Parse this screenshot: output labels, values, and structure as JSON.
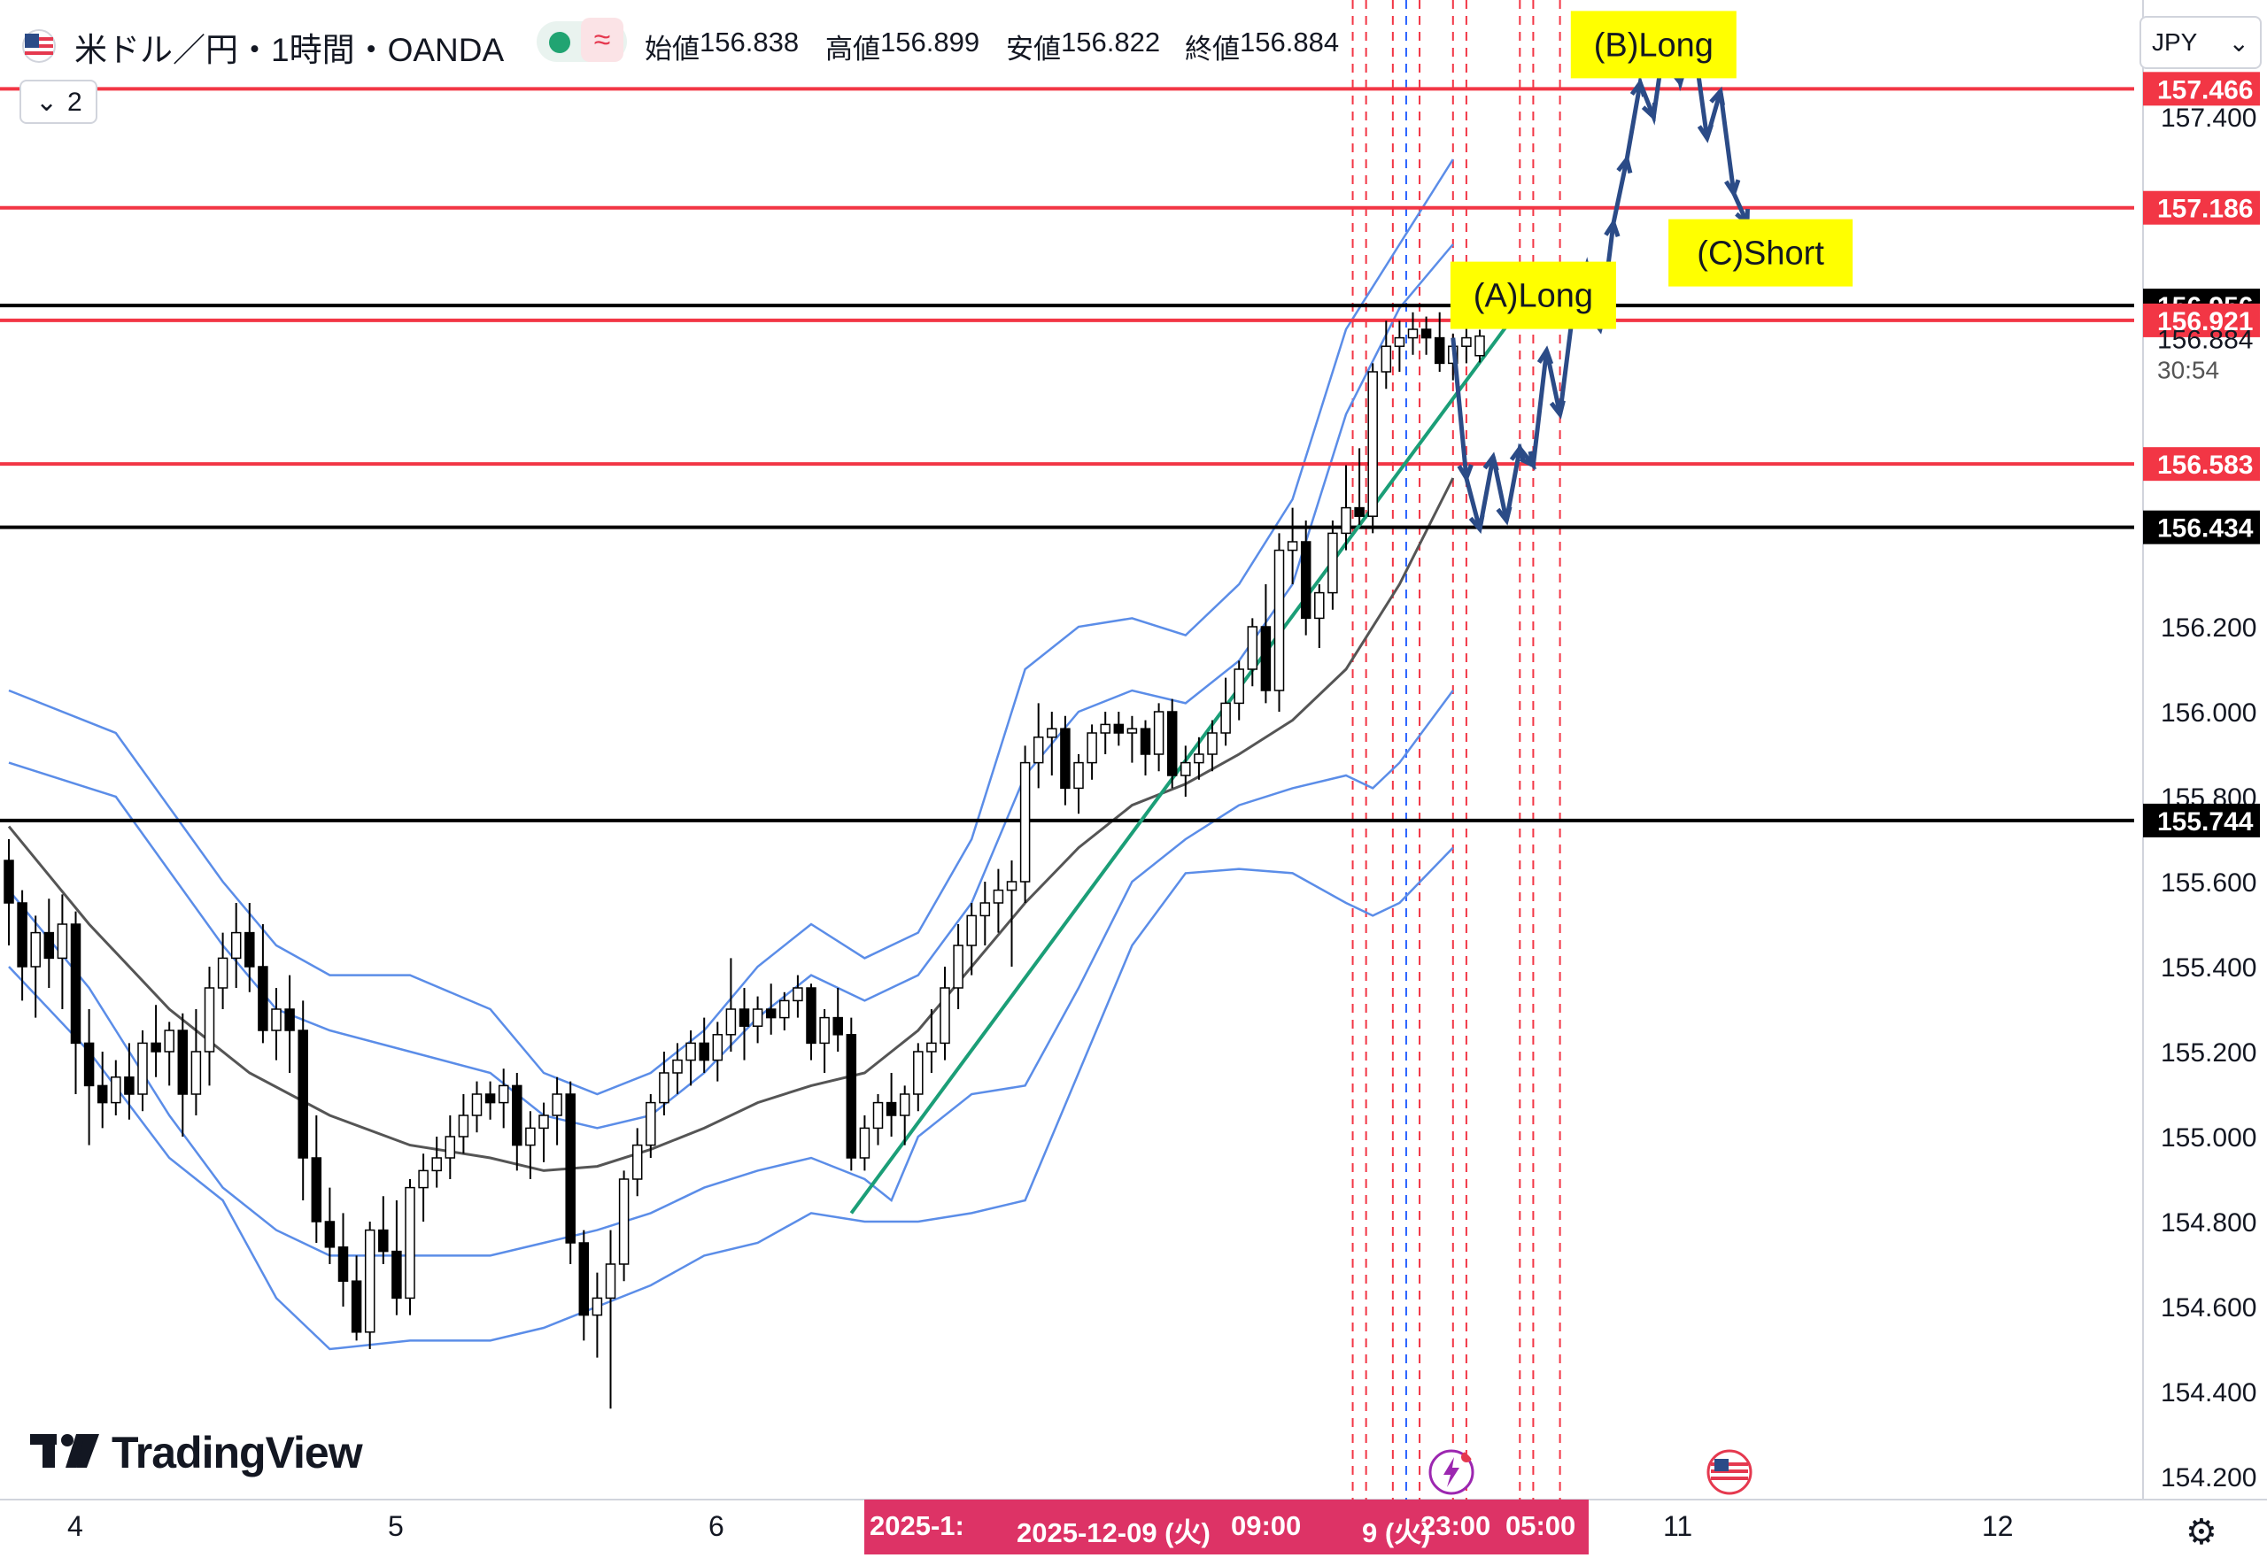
{
  "header": {
    "symbol_title": "米ドル／円・1時間・OANDA",
    "open_label": "始値",
    "open": "156.838",
    "high_label": "高値",
    "high": "156.899",
    "low_label": "安値",
    "low": "156.822",
    "close_label": "終値",
    "close": "156.884",
    "wave_glyph": "≈",
    "indicator_count": "2",
    "currency": "JPY"
  },
  "watermark": "TradingView",
  "colors": {
    "up_candle": "#ffffff",
    "down_candle": "#000000",
    "bollinger": "#5b8de8",
    "middle_band": "#555555",
    "red_level": "#f23645",
    "black_level": "#000000",
    "trendline": "#1b9e77",
    "forecast_path": "#2b4b87",
    "annotation_bg": "#ffff00",
    "date_highlight": "#dd3366"
  },
  "chart_data": {
    "type": "candlestick",
    "symbol": "USDJPY",
    "timeframe": "1 hour",
    "ylim": [
      154.1,
      157.65
    ],
    "y_ticks": [
      "157.400",
      "156.200",
      "156.000",
      "155.800",
      "155.600",
      "155.400",
      "155.200",
      "155.000",
      "154.800",
      "154.600",
      "154.400",
      "154.200"
    ],
    "x_ticks": [
      {
        "label": "4",
        "index": 0
      },
      {
        "label": "5",
        "index": 24
      },
      {
        "label": "6",
        "index": 48
      },
      {
        "label": "11",
        "index": 120
      },
      {
        "label": "12",
        "index": 144
      }
    ],
    "candles": [
      [
        155.65,
        155.7,
        155.45,
        155.55
      ],
      [
        155.55,
        155.58,
        155.32,
        155.4
      ],
      [
        155.4,
        155.52,
        155.28,
        155.48
      ],
      [
        155.48,
        155.56,
        155.35,
        155.42
      ],
      [
        155.42,
        155.57,
        155.3,
        155.5
      ],
      [
        155.5,
        155.53,
        155.1,
        155.22
      ],
      [
        155.22,
        155.3,
        154.98,
        155.12
      ],
      [
        155.12,
        155.2,
        155.02,
        155.08
      ],
      [
        155.08,
        155.18,
        155.05,
        155.14
      ],
      [
        155.14,
        155.22,
        155.04,
        155.1
      ],
      [
        155.1,
        155.25,
        155.06,
        155.22
      ],
      [
        155.22,
        155.31,
        155.14,
        155.2
      ],
      [
        155.2,
        155.27,
        155.12,
        155.25
      ],
      [
        155.25,
        155.29,
        155.0,
        155.1
      ],
      [
        155.1,
        155.3,
        155.05,
        155.2
      ],
      [
        155.2,
        155.4,
        155.12,
        155.35
      ],
      [
        155.35,
        155.48,
        155.3,
        155.42
      ],
      [
        155.42,
        155.55,
        155.35,
        155.48
      ],
      [
        155.48,
        155.55,
        155.34,
        155.4
      ],
      [
        155.4,
        155.5,
        155.22,
        155.25
      ],
      [
        155.25,
        155.35,
        155.18,
        155.3
      ],
      [
        155.3,
        155.38,
        155.15,
        155.25
      ],
      [
        155.25,
        155.32,
        154.85,
        154.95
      ],
      [
        154.95,
        155.05,
        154.75,
        154.8
      ],
      [
        154.8,
        154.88,
        154.7,
        154.74
      ],
      [
        154.74,
        154.82,
        154.6,
        154.66
      ],
      [
        154.66,
        154.72,
        154.52,
        154.54
      ],
      [
        154.54,
        154.8,
        154.5,
        154.78
      ],
      [
        154.78,
        154.86,
        154.7,
        154.73
      ],
      [
        154.73,
        154.85,
        154.58,
        154.62
      ],
      [
        154.62,
        154.9,
        154.58,
        154.88
      ],
      [
        154.88,
        154.96,
        154.8,
        154.92
      ],
      [
        154.92,
        155.0,
        154.88,
        154.95
      ],
      [
        154.95,
        155.05,
        154.9,
        155.0
      ],
      [
        155.0,
        155.1,
        154.96,
        155.05
      ],
      [
        155.05,
        155.13,
        155.01,
        155.1
      ],
      [
        155.1,
        155.13,
        155.04,
        155.08
      ],
      [
        155.08,
        155.16,
        155.02,
        155.12
      ],
      [
        155.12,
        155.15,
        154.92,
        154.98
      ],
      [
        154.98,
        155.06,
        154.9,
        155.02
      ],
      [
        155.02,
        155.08,
        154.94,
        155.05
      ],
      [
        155.05,
        155.14,
        154.98,
        155.1
      ],
      [
        155.1,
        155.13,
        154.7,
        154.75
      ],
      [
        154.75,
        154.78,
        154.52,
        154.58
      ],
      [
        154.58,
        154.68,
        154.48,
        154.62
      ],
      [
        154.62,
        154.78,
        154.36,
        154.7
      ],
      [
        154.7,
        154.92,
        154.66,
        154.9
      ],
      [
        154.9,
        155.02,
        154.86,
        154.98
      ],
      [
        154.98,
        155.1,
        154.95,
        155.08
      ],
      [
        155.08,
        155.2,
        155.05,
        155.15
      ],
      [
        155.15,
        155.22,
        155.1,
        155.18
      ],
      [
        155.18,
        155.25,
        155.12,
        155.22
      ],
      [
        155.22,
        155.28,
        155.15,
        155.18
      ],
      [
        155.18,
        155.27,
        155.13,
        155.24
      ],
      [
        155.24,
        155.42,
        155.2,
        155.3
      ],
      [
        155.3,
        155.35,
        155.18,
        155.26
      ],
      [
        155.26,
        155.33,
        155.22,
        155.3
      ],
      [
        155.3,
        155.36,
        155.24,
        155.28
      ],
      [
        155.28,
        155.34,
        155.25,
        155.32
      ],
      [
        155.32,
        155.38,
        155.28,
        155.35
      ],
      [
        155.35,
        155.36,
        155.18,
        155.22
      ],
      [
        155.22,
        155.3,
        155.15,
        155.28
      ],
      [
        155.28,
        155.35,
        155.2,
        155.24
      ],
      [
        155.24,
        155.28,
        154.92,
        154.95
      ],
      [
        154.95,
        155.05,
        154.92,
        155.02
      ],
      [
        155.02,
        155.1,
        154.98,
        155.08
      ],
      [
        155.08,
        155.15,
        155.0,
        155.05
      ],
      [
        155.05,
        155.12,
        154.98,
        155.1
      ],
      [
        155.1,
        155.22,
        155.06,
        155.2
      ],
      [
        155.2,
        155.3,
        155.15,
        155.22
      ],
      [
        155.22,
        155.4,
        155.18,
        155.35
      ],
      [
        155.35,
        155.5,
        155.3,
        155.45
      ],
      [
        155.45,
        155.55,
        155.38,
        155.52
      ],
      [
        155.52,
        155.6,
        155.45,
        155.55
      ],
      [
        155.55,
        155.63,
        155.48,
        155.58
      ],
      [
        155.58,
        155.65,
        155.4,
        155.6
      ],
      [
        155.6,
        155.92,
        155.55,
        155.88
      ],
      [
        155.88,
        156.02,
        155.82,
        155.94
      ],
      [
        155.94,
        156.0,
        155.85,
        155.96
      ],
      [
        155.96,
        155.99,
        155.78,
        155.82
      ],
      [
        155.82,
        155.9,
        155.76,
        155.88
      ],
      [
        155.88,
        155.97,
        155.84,
        155.95
      ],
      [
        155.95,
        156.0,
        155.9,
        155.97
      ],
      [
        155.97,
        156.0,
        155.92,
        155.95
      ],
      [
        155.95,
        155.99,
        155.88,
        155.96
      ],
      [
        155.96,
        155.98,
        155.85,
        155.9
      ],
      [
        155.9,
        156.02,
        155.86,
        156.0
      ],
      [
        156.0,
        156.03,
        155.82,
        155.85
      ],
      [
        155.85,
        155.92,
        155.8,
        155.88
      ],
      [
        155.88,
        155.94,
        155.84,
        155.9
      ],
      [
        155.9,
        155.98,
        155.86,
        155.95
      ],
      [
        155.95,
        156.08,
        155.92,
        156.02
      ],
      [
        156.02,
        156.12,
        155.98,
        156.1
      ],
      [
        156.1,
        156.22,
        156.06,
        156.2
      ],
      [
        156.2,
        156.3,
        156.02,
        156.05
      ],
      [
        156.05,
        156.42,
        156.0,
        156.38
      ],
      [
        156.38,
        156.48,
        156.3,
        156.4
      ],
      [
        156.4,
        156.45,
        156.18,
        156.22
      ],
      [
        156.22,
        156.3,
        156.15,
        156.28
      ],
      [
        156.28,
        156.45,
        156.24,
        156.42
      ],
      [
        156.42,
        156.58,
        156.38,
        156.48
      ],
      [
        156.48,
        156.62,
        156.44,
        156.46
      ],
      [
        156.46,
        156.82,
        156.42,
        156.8
      ],
      [
        156.8,
        156.92,
        156.76,
        156.86
      ],
      [
        156.86,
        156.92,
        156.8,
        156.88
      ],
      [
        156.88,
        156.94,
        156.84,
        156.9
      ],
      [
        156.9,
        156.93,
        156.84,
        156.88
      ],
      [
        156.88,
        156.94,
        156.8,
        156.82
      ],
      [
        156.82,
        156.89,
        156.78,
        156.86
      ],
      [
        156.86,
        156.91,
        156.82,
        156.88
      ],
      [
        156.838,
        156.899,
        156.822,
        156.884
      ]
    ],
    "bollinger": {
      "upper_outer": [
        [
          0,
          156.05
        ],
        [
          8,
          155.95
        ],
        [
          16,
          155.6
        ],
        [
          20,
          155.45
        ],
        [
          24,
          155.38
        ],
        [
          30,
          155.38
        ],
        [
          36,
          155.3
        ],
        [
          40,
          155.15
        ],
        [
          44,
          155.1
        ],
        [
          48,
          155.15
        ],
        [
          52,
          155.25
        ],
        [
          56,
          155.4
        ],
        [
          60,
          155.5
        ],
        [
          64,
          155.42
        ],
        [
          68,
          155.48
        ],
        [
          72,
          155.7
        ],
        [
          76,
          156.1
        ],
        [
          80,
          156.2
        ],
        [
          84,
          156.22
        ],
        [
          88,
          156.18
        ],
        [
          92,
          156.3
        ],
        [
          96,
          156.5
        ],
        [
          100,
          156.9
        ],
        [
          104,
          157.1
        ],
        [
          108,
          157.3
        ]
      ],
      "upper_inner": [
        [
          0,
          155.88
        ],
        [
          8,
          155.8
        ],
        [
          16,
          155.45
        ],
        [
          20,
          155.3
        ],
        [
          24,
          155.25
        ],
        [
          30,
          155.2
        ],
        [
          36,
          155.15
        ],
        [
          40,
          155.05
        ],
        [
          44,
          155.02
        ],
        [
          48,
          155.05
        ],
        [
          52,
          155.15
        ],
        [
          56,
          155.28
        ],
        [
          60,
          155.38
        ],
        [
          64,
          155.32
        ],
        [
          68,
          155.38
        ],
        [
          72,
          155.55
        ],
        [
          76,
          155.85
        ],
        [
          80,
          156.0
        ],
        [
          84,
          156.05
        ],
        [
          88,
          156.02
        ],
        [
          92,
          156.12
        ],
        [
          96,
          156.3
        ],
        [
          100,
          156.7
        ],
        [
          104,
          156.95
        ],
        [
          108,
          157.1
        ]
      ],
      "middle": [
        [
          0,
          155.73
        ],
        [
          6,
          155.5
        ],
        [
          12,
          155.3
        ],
        [
          18,
          155.15
        ],
        [
          24,
          155.05
        ],
        [
          30,
          154.98
        ],
        [
          36,
          154.95
        ],
        [
          40,
          154.92
        ],
        [
          44,
          154.93
        ],
        [
          48,
          154.97
        ],
        [
          52,
          155.02
        ],
        [
          56,
          155.08
        ],
        [
          60,
          155.12
        ],
        [
          64,
          155.15
        ],
        [
          68,
          155.25
        ],
        [
          72,
          155.4
        ],
        [
          76,
          155.55
        ],
        [
          80,
          155.68
        ],
        [
          84,
          155.78
        ],
        [
          88,
          155.83
        ],
        [
          92,
          155.9
        ],
        [
          96,
          155.98
        ],
        [
          100,
          156.1
        ],
        [
          104,
          156.3
        ],
        [
          108,
          156.55
        ]
      ],
      "lower_inner": [
        [
          0,
          155.58
        ],
        [
          6,
          155.35
        ],
        [
          12,
          155.05
        ],
        [
          16,
          154.88
        ],
        [
          20,
          154.78
        ],
        [
          24,
          154.72
        ],
        [
          30,
          154.72
        ],
        [
          36,
          154.72
        ],
        [
          40,
          154.75
        ],
        [
          44,
          154.78
        ],
        [
          48,
          154.82
        ],
        [
          52,
          154.88
        ],
        [
          56,
          154.92
        ],
        [
          60,
          154.95
        ],
        [
          64,
          154.9
        ],
        [
          66,
          154.85
        ],
        [
          68,
          155.0
        ],
        [
          72,
          155.1
        ],
        [
          76,
          155.12
        ],
        [
          80,
          155.35
        ],
        [
          84,
          155.6
        ],
        [
          88,
          155.7
        ],
        [
          92,
          155.78
        ],
        [
          96,
          155.82
        ],
        [
          100,
          155.85
        ],
        [
          102,
          155.82
        ],
        [
          104,
          155.88
        ],
        [
          108,
          156.05
        ]
      ],
      "lower_outer": [
        [
          0,
          155.4
        ],
        [
          6,
          155.2
        ],
        [
          12,
          154.95
        ],
        [
          16,
          154.85
        ],
        [
          20,
          154.62
        ],
        [
          24,
          154.5
        ],
        [
          30,
          154.52
        ],
        [
          36,
          154.52
        ],
        [
          40,
          154.55
        ],
        [
          44,
          154.6
        ],
        [
          48,
          154.65
        ],
        [
          52,
          154.72
        ],
        [
          56,
          154.75
        ],
        [
          60,
          154.82
        ],
        [
          64,
          154.8
        ],
        [
          68,
          154.8
        ],
        [
          72,
          154.82
        ],
        [
          76,
          154.85
        ],
        [
          80,
          155.15
        ],
        [
          84,
          155.45
        ],
        [
          88,
          155.62
        ],
        [
          92,
          155.63
        ],
        [
          96,
          155.62
        ],
        [
          100,
          155.55
        ],
        [
          102,
          155.52
        ],
        [
          104,
          155.55
        ],
        [
          108,
          155.68
        ]
      ]
    },
    "horizontal_levels": [
      {
        "price": 157.466,
        "label": "157.466",
        "style": "red"
      },
      {
        "price": 157.186,
        "label": "157.186",
        "style": "red"
      },
      {
        "price": 156.956,
        "label": "156.956",
        "style": "black"
      },
      {
        "price": 156.921,
        "label": "156.921",
        "style": "red"
      },
      {
        "price": 156.583,
        "label": "156.583",
        "style": "red"
      },
      {
        "price": 156.434,
        "label": "156.434",
        "style": "black"
      },
      {
        "price": 155.744,
        "label": "155.744",
        "style": "black"
      }
    ],
    "current_price": {
      "label": "156.884",
      "countdown": "30:54"
    },
    "trendline": [
      [
        63,
        154.82
      ],
      [
        113,
        156.95
      ]
    ],
    "forecast_path": [
      [
        108,
        156.88
      ],
      [
        109,
        156.55
      ],
      [
        110,
        156.43
      ],
      [
        111,
        156.6
      ],
      [
        112,
        156.45
      ],
      [
        113,
        156.62
      ],
      [
        114,
        156.58
      ],
      [
        115,
        156.85
      ],
      [
        116,
        156.7
      ],
      [
        117,
        156.95
      ],
      [
        118,
        157.05
      ],
      [
        119,
        156.9
      ],
      [
        120,
        157.15
      ],
      [
        121,
        157.3
      ],
      [
        122,
        157.48
      ],
      [
        123,
        157.4
      ],
      [
        124,
        157.62
      ],
      [
        125,
        157.48
      ],
      [
        126,
        157.58
      ],
      [
        127,
        157.35
      ],
      [
        128,
        157.46
      ],
      [
        129,
        157.22
      ],
      [
        130,
        157.15
      ]
    ],
    "annotations": [
      {
        "text": "(A)Long",
        "anchor_index": 114,
        "anchor_price": 156.98
      },
      {
        "text": "(B)Long",
        "anchor_index": 123,
        "anchor_price": 157.57
      },
      {
        "text": "(C)Short",
        "anchor_index": 131,
        "anchor_price": 157.08
      }
    ],
    "vertical_markers_red": [
      100.5,
      101.5,
      103.5,
      105.5,
      108,
      109,
      113,
      114,
      116
    ],
    "vertical_markers_blue": [
      104.5
    ],
    "x_highlight_labels": [
      "2025-1:",
      "2025-12-09 (火)",
      "09:00",
      "9 (火)",
      "23:00",
      "05:00"
    ]
  }
}
